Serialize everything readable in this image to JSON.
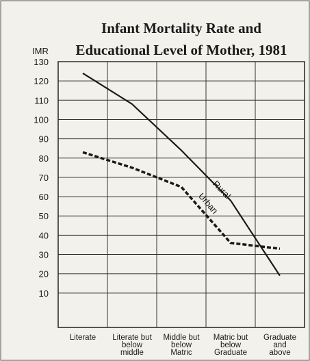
{
  "chart_data": {
    "type": "line",
    "title": [
      "Infant Mortality Rate and",
      "Educational Level of Mother, 1981"
    ],
    "ylabel": "IMR",
    "categories": [
      [
        "Literate"
      ],
      [
        "Literate but",
        "below",
        "middle"
      ],
      [
        "Middle but",
        "below",
        "Matric"
      ],
      [
        "Matric but",
        "below",
        "Graduate"
      ],
      [
        "Graduate",
        "and",
        "above"
      ]
    ],
    "series": [
      {
        "name": "Rural",
        "color": "#1a1a1a",
        "dash": false,
        "values": [
          124,
          108,
          84,
          58,
          19
        ]
      },
      {
        "name": "Urban",
        "color": "#1a1a1a",
        "dash": true,
        "values": [
          83,
          75,
          65,
          36,
          33
        ]
      }
    ],
    "ylim": [
      0,
      130
    ],
    "yticks": [
      10,
      20,
      30,
      40,
      50,
      60,
      70,
      80,
      90,
      100,
      110,
      120,
      130
    ],
    "grid": true
  }
}
